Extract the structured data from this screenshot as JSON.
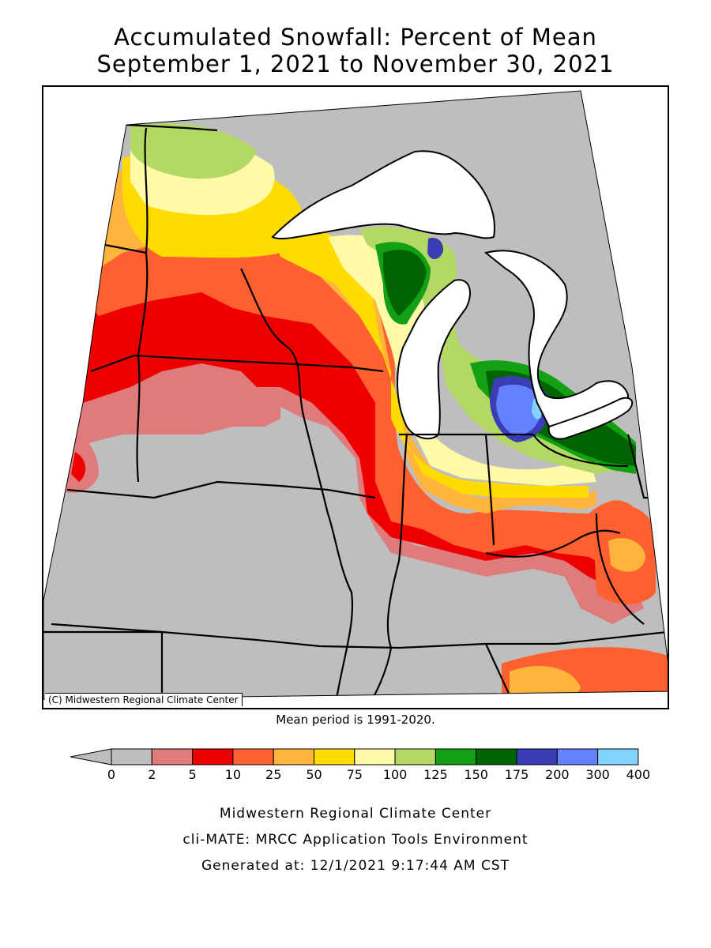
{
  "title": {
    "line1": "Accumulated Snowfall: Percent of Mean",
    "line2": "September 1, 2021 to November 30, 2021"
  },
  "map": {
    "credit": "(C) Midwestern Regional Climate Center",
    "background_color": "#bebebe",
    "water_color": "#ffffff"
  },
  "mean_period": "Mean period is 1991-2020.",
  "legend": {
    "categories": [
      {
        "label": "0",
        "color": "#bebebe"
      },
      {
        "label": "2",
        "color": "#e07b7b"
      },
      {
        "label": "5",
        "color": "#ee0000"
      },
      {
        "label": "10",
        "color": "#ff6030"
      },
      {
        "label": "25",
        "color": "#ffb43c"
      },
      {
        "label": "50",
        "color": "#ffdc00"
      },
      {
        "label": "75",
        "color": "#fffaa8"
      },
      {
        "label": "100",
        "color": "#b4d864"
      },
      {
        "label": "125",
        "color": "#14a014"
      },
      {
        "label": "150",
        "color": "#006400"
      },
      {
        "label": "175",
        "color": "#3c3cb4"
      },
      {
        "label": "200",
        "color": "#6482ff"
      },
      {
        "label": "300",
        "color": "#82d2ff"
      }
    ],
    "last_label": "400"
  },
  "footer": {
    "line1": "Midwestern Regional Climate Center",
    "line2": "cli-MATE: MRCC Application Tools Environment",
    "line3": "Generated at: 12/1/2021 9:17:44 AM CST"
  }
}
